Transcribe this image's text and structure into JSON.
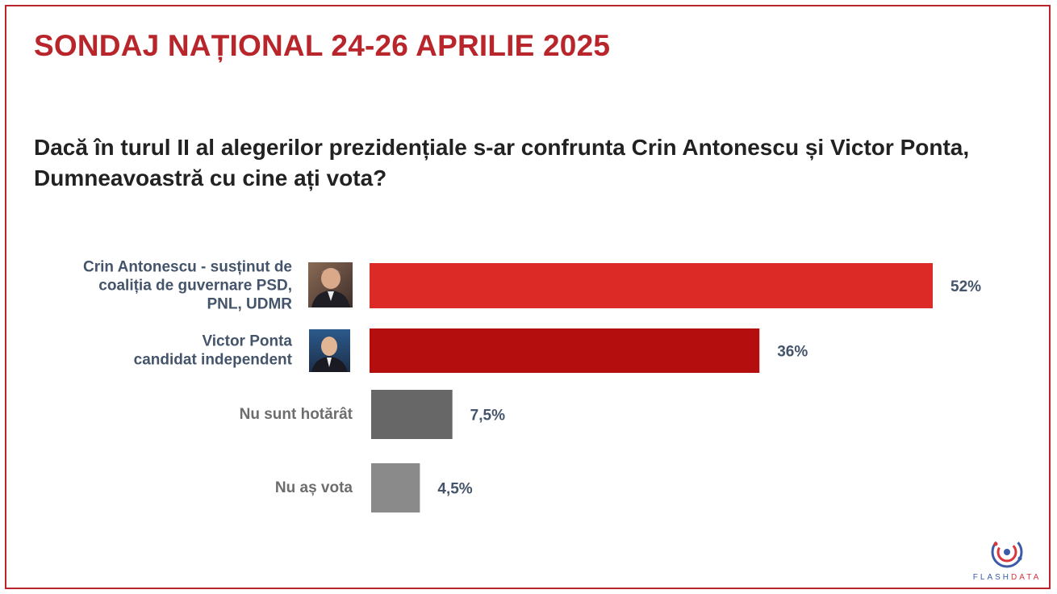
{
  "slide": {
    "title": "SONDAJ NAȚIONAL 24-26 APRILIE 2025",
    "question": "Dacă în turul II al alegerilor prezidențiale s-ar confrunta Crin Antonescu și Victor Ponta, Dumneavoastră cu cine ați vota?",
    "brand_color": "#b8262c"
  },
  "chart_data": {
    "type": "bar",
    "orientation": "horizontal",
    "categories": [
      "Crin Antonescu - susținut de coaliția de guvernare PSD, PNL, UDMR",
      "Victor Ponta candidat independent",
      "Nu sunt hotărât",
      "Nu aș vota"
    ],
    "category_label_lines": [
      [
        "Crin Antonescu - susținut de",
        "coaliția de guvernare PSD,",
        "PNL, UDMR"
      ],
      [
        "Victor Ponta",
        "candidat independent"
      ],
      [
        "Nu sunt hotărât"
      ],
      [
        "Nu aș vota"
      ]
    ],
    "values": [
      52,
      36,
      7.5,
      4.5
    ],
    "value_labels": [
      "52%",
      "36%",
      "7,5%",
      "4,5%"
    ],
    "bar_colors": [
      "#dc2a26",
      "#b50e0e",
      "#676767",
      "#8a8a8a"
    ],
    "label_colors": [
      "#44546a",
      "#44546a",
      "#6d6d6d",
      "#6d6d6d"
    ],
    "has_photo": [
      true,
      true,
      false,
      false
    ],
    "xlim": [
      0,
      100
    ],
    "grid": false,
    "legend": "none"
  },
  "photos": [
    {
      "icon": "crin-antonescu-photo"
    },
    {
      "icon": "victor-ponta-photo"
    }
  ],
  "logo": {
    "text": "FLASHDATA",
    "icon": "flashdata-logo-icon",
    "color_red": "#d9363e",
    "color_blue": "#3b5aa8"
  }
}
